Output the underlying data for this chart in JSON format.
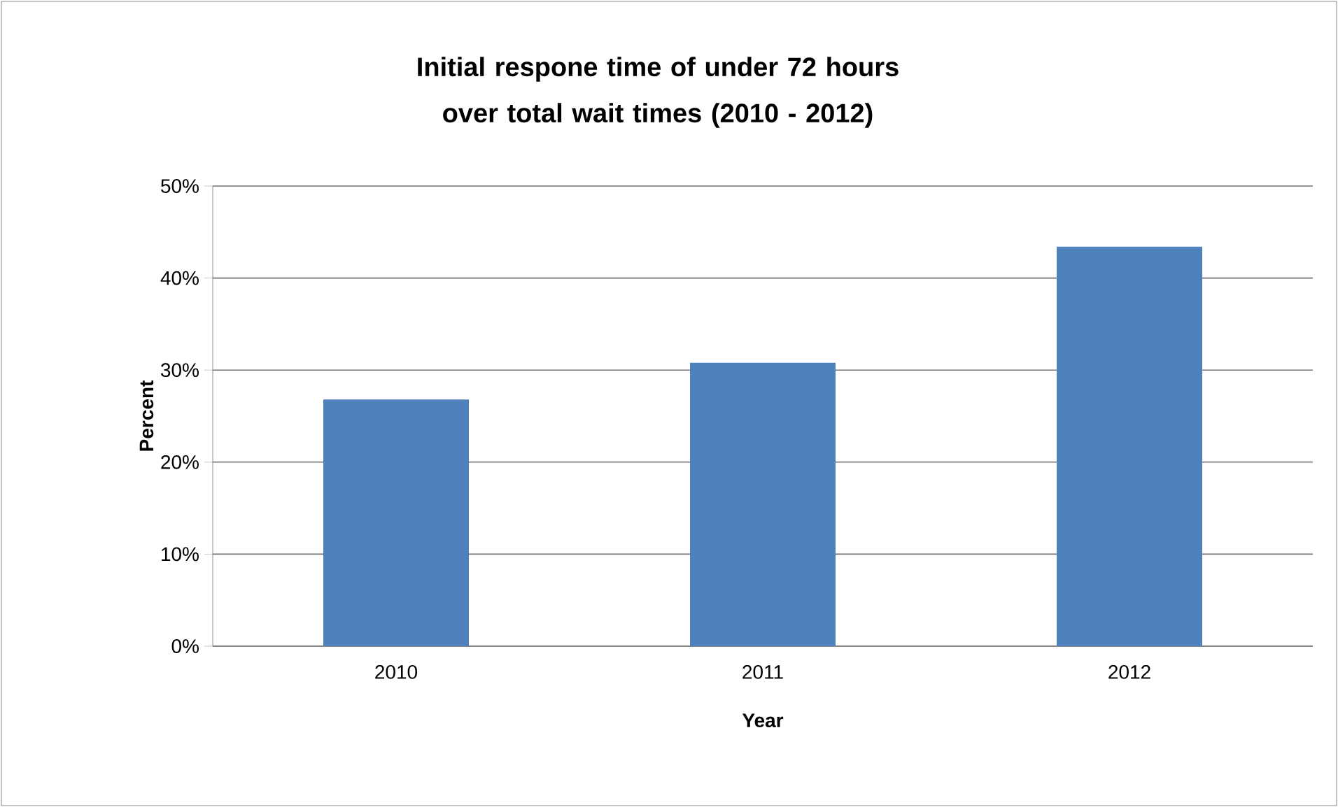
{
  "chart_data": {
    "type": "bar",
    "title": "Initial respone time of under 72 hours over total wait times (2010 - 2012)",
    "xlabel": "Year",
    "ylabel": "Percent",
    "categories": [
      "2010",
      "2011",
      "2012"
    ],
    "values": [
      26.8,
      30.8,
      43.4
    ],
    "color": "#4f81bd",
    "ylim": [
      0,
      50
    ],
    "yticks": [
      {
        "value": 0,
        "label": "0%"
      },
      {
        "value": 10,
        "label": "10%"
      },
      {
        "value": 20,
        "label": "20%"
      },
      {
        "value": 30,
        "label": "30%"
      },
      {
        "value": 40,
        "label": "40%"
      },
      {
        "value": 50,
        "label": "50%"
      }
    ],
    "grid": "y"
  }
}
